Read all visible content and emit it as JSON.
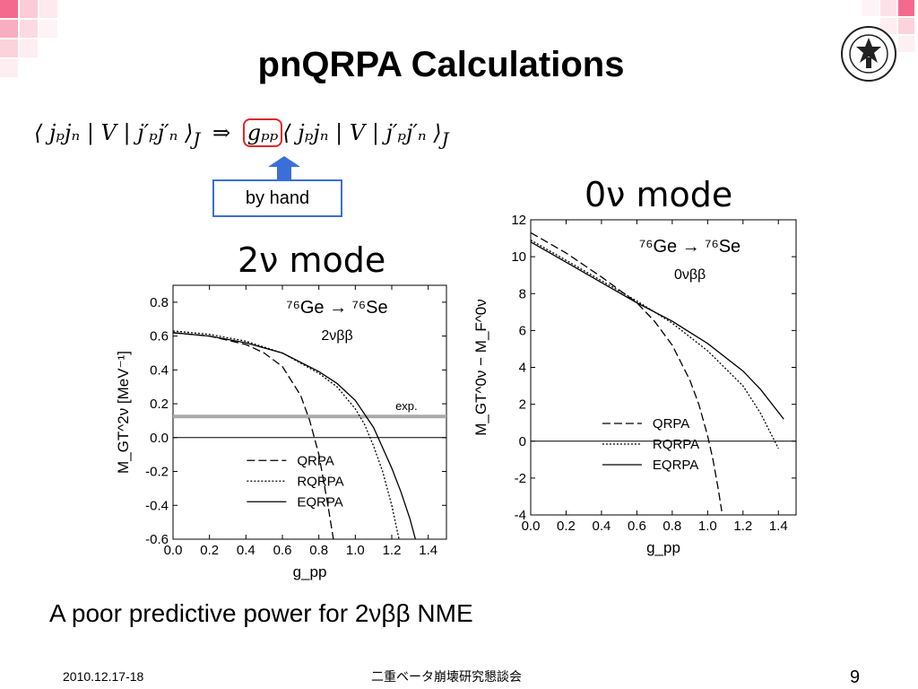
{
  "slide": {
    "title": "pnQRPA Calculations",
    "equation": {
      "left": "⟨ jₚjₙ | V | j′ₚj′ₙ ⟩",
      "left_sub": "J",
      "arrow": "⇒",
      "highlighted": "gₚₚ",
      "right": "⟨ jₚjₙ | V | j′ₚj′ₙ ⟩",
      "right_sub": "J"
    },
    "by_hand_label": "by hand",
    "mode_2nu": "2ν mode",
    "mode_0nu": "0ν mode",
    "conclusion": "A poor predictive power for 2νββ NME",
    "footer_date": "2010.12.17-18",
    "footer_center": "二重ベータ崩壊研究懇談会",
    "page_number": "9",
    "colors": {
      "accent_red": "#e0262b",
      "accent_blue": "#3a6fd8",
      "deco_pink": "#f46a8e"
    }
  },
  "chart_data": [
    {
      "id": "two-nu",
      "type": "line",
      "xlabel": "g_pp",
      "ylabel": "M_GT^2ν [MeV⁻¹]",
      "xlim": [
        0.0,
        1.5
      ],
      "ylim": [
        -0.6,
        0.9
      ],
      "xticks": [
        "0.0",
        "0.2",
        "0.4",
        "0.6",
        "0.8",
        "1.0",
        "1.2",
        "1.4"
      ],
      "yticks": [
        "0.8",
        "0.6",
        "0.4",
        "0.2",
        "0.0",
        "-0.2",
        "-0.4",
        "-0.6"
      ],
      "annotation_reaction": "⁷⁶Ge → ⁷⁶Se",
      "annotation_process": "2νββ",
      "exp_label": "exp.",
      "exp_value": 0.125,
      "series": [
        {
          "name": "QRPA",
          "style": "dashed",
          "x": [
            0,
            0.2,
            0.4,
            0.5,
            0.6,
            0.7,
            0.75,
            0.8,
            0.85,
            0.88
          ],
          "y": [
            0.62,
            0.6,
            0.55,
            0.5,
            0.42,
            0.25,
            0.1,
            -0.1,
            -0.4,
            -0.6
          ]
        },
        {
          "name": "RQRPA",
          "style": "dotted",
          "x": [
            0,
            0.2,
            0.4,
            0.6,
            0.8,
            0.9,
            1.0,
            1.05,
            1.1,
            1.15,
            1.2,
            1.24
          ],
          "y": [
            0.63,
            0.61,
            0.57,
            0.5,
            0.38,
            0.3,
            0.17,
            0.08,
            -0.05,
            -0.2,
            -0.4,
            -0.6
          ]
        },
        {
          "name": "EQRPA",
          "style": "solid",
          "x": [
            0,
            0.2,
            0.4,
            0.6,
            0.8,
            0.9,
            1.0,
            1.1,
            1.2,
            1.25,
            1.3,
            1.33
          ],
          "y": [
            0.62,
            0.6,
            0.56,
            0.5,
            0.39,
            0.32,
            0.22,
            0.06,
            -0.18,
            -0.32,
            -0.48,
            -0.6
          ]
        }
      ]
    },
    {
      "id": "zero-nu",
      "type": "line",
      "xlabel": "g_pp",
      "ylabel": "M_GT^0ν − M_F^0ν",
      "xlim": [
        0.0,
        1.5
      ],
      "ylim": [
        -4,
        12
      ],
      "xticks": [
        "0.0",
        "0.2",
        "0.4",
        "0.6",
        "0.8",
        "1.0",
        "1.2",
        "1.4"
      ],
      "yticks": [
        "12",
        "10",
        "8",
        "6",
        "4",
        "2",
        "0",
        "-2",
        "-4"
      ],
      "annotation_reaction": "⁷⁶Ge → ⁷⁶Se",
      "annotation_process": "0νββ",
      "series": [
        {
          "name": "QRPA",
          "style": "dashed",
          "x": [
            0,
            0.2,
            0.4,
            0.6,
            0.7,
            0.8,
            0.9,
            0.95,
            1.0,
            1.03,
            1.06,
            1.08
          ],
          "y": [
            11.3,
            10.2,
            8.9,
            7.5,
            6.5,
            5.2,
            3.3,
            2.0,
            0.3,
            -1.0,
            -2.6,
            -3.8
          ]
        },
        {
          "name": "RQRPA",
          "style": "dotted",
          "x": [
            0,
            0.2,
            0.4,
            0.6,
            0.8,
            1.0,
            1.2,
            1.3,
            1.4
          ],
          "y": [
            10.9,
            9.8,
            8.7,
            7.6,
            6.4,
            4.9,
            3.0,
            1.5,
            -0.4
          ]
        },
        {
          "name": "EQRPA",
          "style": "solid",
          "x": [
            0,
            0.2,
            0.4,
            0.6,
            0.8,
            1.0,
            1.2,
            1.3,
            1.43
          ],
          "y": [
            10.8,
            9.7,
            8.6,
            7.5,
            6.5,
            5.3,
            3.8,
            2.8,
            1.2
          ]
        }
      ]
    }
  ]
}
